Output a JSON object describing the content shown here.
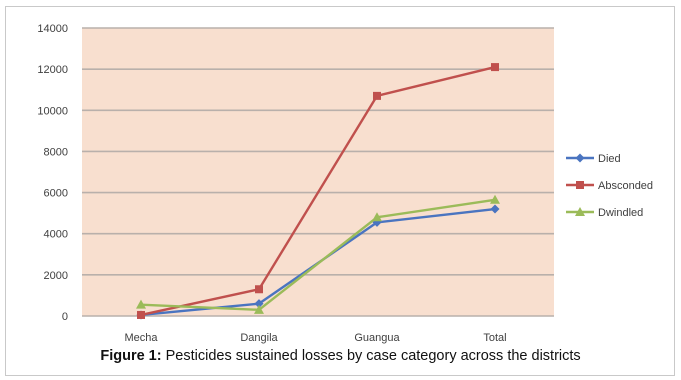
{
  "caption": {
    "label": "Figure 1:",
    "text": " Pesticides sustained losses by case category across the districts"
  },
  "colors": {
    "plot_bg": "#f8dfcf",
    "grid": "#b9b0ab",
    "Died": "#4a74c0",
    "Absconded": "#c0504d",
    "Dwindled": "#9bbb59"
  },
  "chart_data": {
    "type": "line",
    "categories": [
      "Mecha",
      "Dangila",
      "Guangua",
      "Total"
    ],
    "series": [
      {
        "name": "Died",
        "marker": "diamond",
        "values": [
          50,
          600,
          4550,
          5200
        ]
      },
      {
        "name": "Absconded",
        "marker": "square",
        "values": [
          50,
          1300,
          10700,
          12100
        ]
      },
      {
        "name": "Dwindled",
        "marker": "triangle",
        "values": [
          550,
          300,
          4800,
          5650
        ]
      }
    ],
    "ylim": [
      0,
      14000
    ],
    "yticks": [
      "0",
      "2000",
      "4000",
      "6000",
      "8000",
      "10000",
      "12000",
      "14000"
    ],
    "grid": true,
    "legend": "right"
  }
}
